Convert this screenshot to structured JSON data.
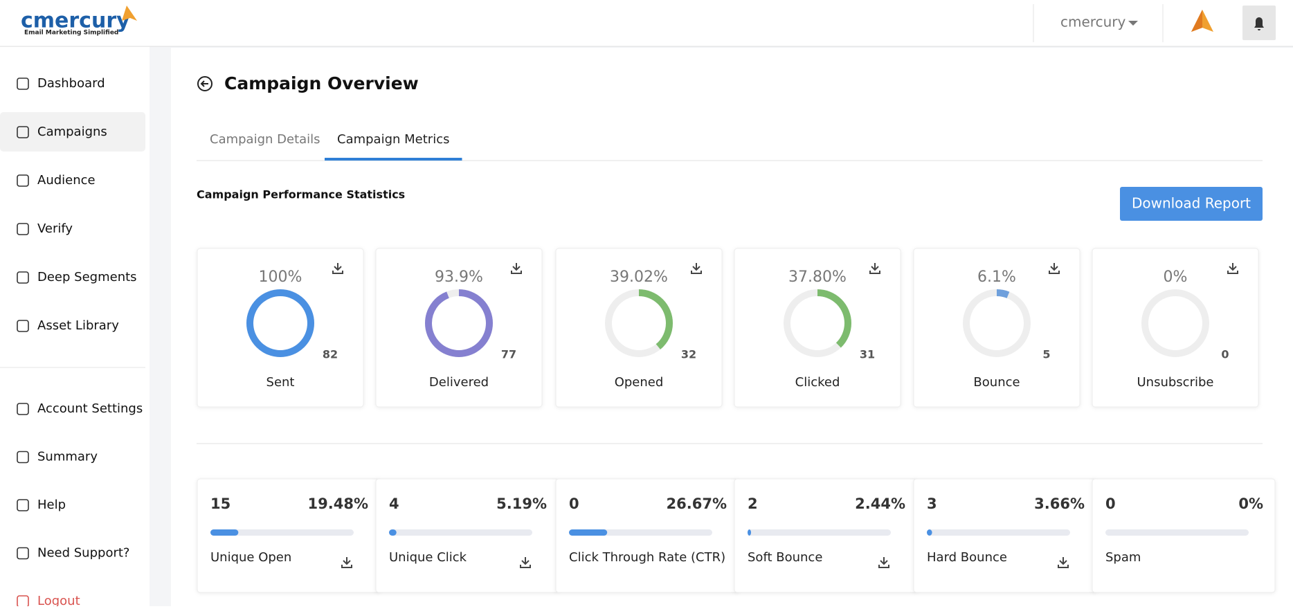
{
  "header": {
    "logo": "cmercury",
    "tagline": "Email Marketing Simplified",
    "user": "cmercury"
  },
  "sidebar": {
    "items": [
      "Dashboard",
      "Campaigns",
      "Audience",
      "Verify",
      "Deep Segments",
      "Asset Library"
    ],
    "bottom_items": [
      "Account Settings",
      "Summary",
      "Help",
      "Need Support?",
      "Logout"
    ],
    "active": 1
  },
  "page": {
    "title": "Campaign Overview",
    "tabs": [
      "Campaign Details",
      "Campaign Metrics"
    ],
    "active_tab": 1,
    "section_title": "Campaign Performance Statistics",
    "button": "Download Report"
  },
  "donut_cards": [
    {
      "percent": {
        "value": 100,
        "label": "100%"
      },
      "count": 82,
      "label": "Sent",
      "color": "#4a90e2"
    },
    {
      "percent": {
        "value": 93.9,
        "label": "93.9%"
      },
      "count": 77,
      "label": "Delivered",
      "color": "#8580d0"
    },
    {
      "percent": {
        "value": 39.02,
        "label": "39.02%"
      },
      "count": 32,
      "label": "Opened",
      "color": "#7dbb6e"
    },
    {
      "percent": {
        "value": 37.8,
        "label": "37.80%"
      },
      "count": 31,
      "label": "Clicked",
      "color": "#7dbb6e"
    },
    {
      "percent": {
        "value": 6.1,
        "label": "6.1%"
      },
      "count": 5,
      "label": "Bounce",
      "color": "#6fa0dc"
    },
    {
      "percent": {
        "value": 0,
        "label": "0%"
      },
      "count": 0,
      "label": "Unsubscribe",
      "color": "#4a90e2"
    }
  ],
  "metric_cards": [
    {
      "count": 15,
      "percent": {
        "value": 19.48,
        "label": "19.48%"
      },
      "label": "Unique Open"
    },
    {
      "count": 4,
      "percent": {
        "value": 5.19,
        "label": "5.19%"
      },
      "label": "Unique Click"
    },
    {
      "count": 0,
      "percent": {
        "value": 26.67,
        "label": "26.67%"
      },
      "label": "Click Through Rate (CTR)"
    },
    {
      "count": 2,
      "percent": {
        "value": 2.44,
        "label": "2.44%"
      },
      "label": "Soft Bounce"
    },
    {
      "count": 3,
      "percent": {
        "value": 3.66,
        "label": "3.66%"
      },
      "label": "Hard Bounce"
    },
    {
      "count": 0,
      "percent": {
        "value": 0,
        "label": "0%"
      },
      "label": "Spam"
    }
  ]
}
